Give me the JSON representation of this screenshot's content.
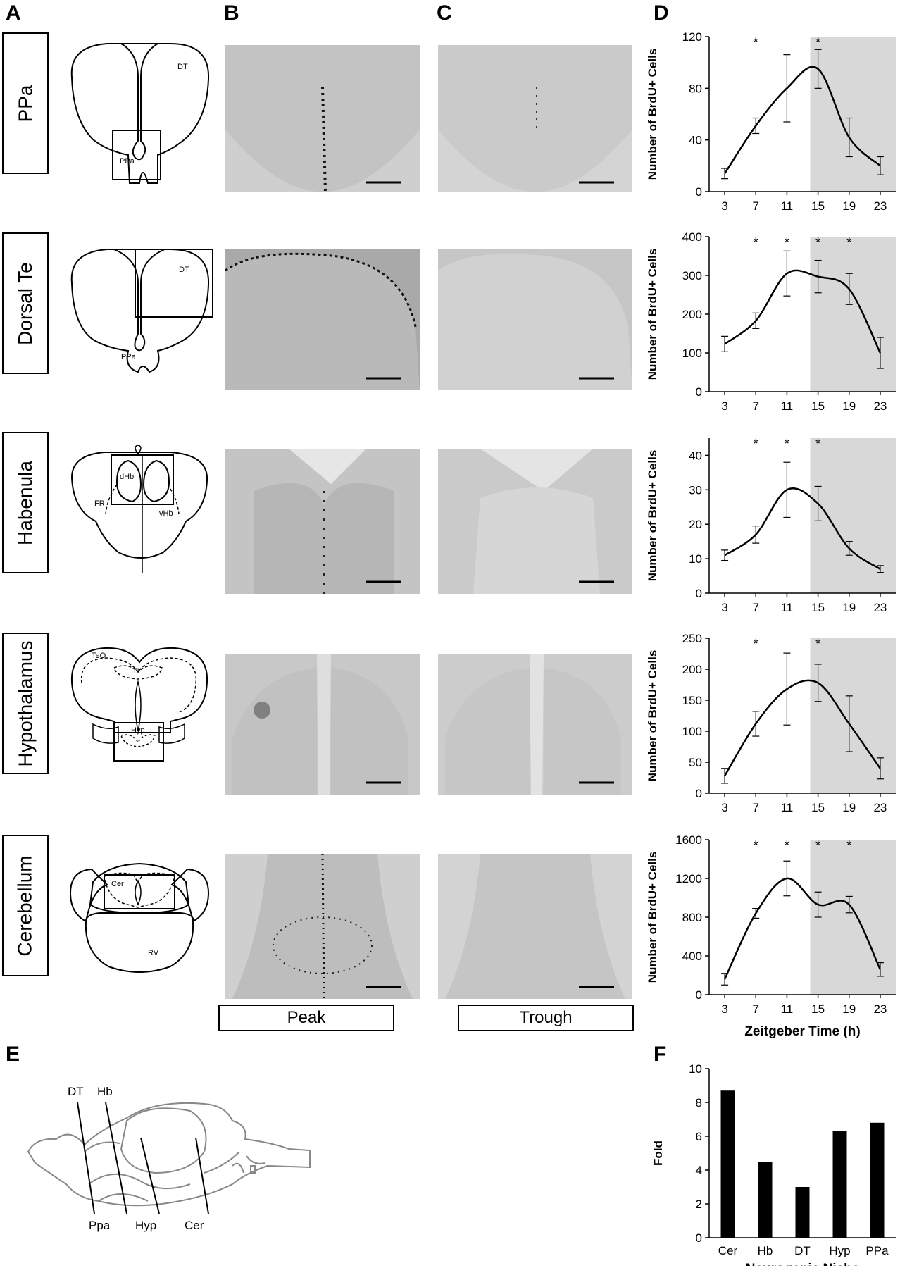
{
  "panel_letters": {
    "A": "A",
    "B": "B",
    "C": "C",
    "D": "D",
    "E": "E",
    "F": "F"
  },
  "regions": [
    "PPa",
    "Dorsal Te",
    "Habenula",
    "Hypothalamus",
    "Cerebellum"
  ],
  "schematic_labels": {
    "ppa": {
      "dt": "DT",
      "ppa": "PPa"
    },
    "dorsal_te": {
      "dt": "DT",
      "ppa": "PPa"
    },
    "habenula": {
      "dhb": "dHb",
      "fr": "FR",
      "vhb": "vHb"
    },
    "hypothalamus": {
      "teo": "TeO",
      "tl": "TL",
      "hyp": "Hyp"
    },
    "cerebellum": {
      "cer": "Cer",
      "rv": "RV"
    }
  },
  "column_labels": {
    "peak": "Peak",
    "trough": "Trough"
  },
  "sagittal_labels": {
    "dt": "DT",
    "hb": "Hb",
    "ppa": "Ppa",
    "hyp": "Hyp",
    "cer": "Cer"
  },
  "chart_data": [
    {
      "type": "line",
      "region": "PPa",
      "x": [
        3,
        7,
        11,
        15,
        19,
        23
      ],
      "y": [
        14,
        51,
        80,
        95,
        42,
        20
      ],
      "err": [
        4,
        6,
        26,
        15,
        15,
        7
      ],
      "sig": [
        false,
        true,
        false,
        true,
        false,
        false
      ],
      "ylim": [
        0,
        120
      ],
      "yticks": [
        0,
        40,
        80,
        120
      ],
      "ylabel": "Number of BrdU+ Cells",
      "xlabel": "",
      "dark_start": 14
    },
    {
      "type": "line",
      "region": "Dorsal Te",
      "x": [
        3,
        7,
        11,
        15,
        19,
        23
      ],
      "y": [
        123,
        183,
        305,
        297,
        265,
        100
      ],
      "err": [
        20,
        20,
        58,
        42,
        40,
        40
      ],
      "sig": [
        false,
        true,
        true,
        true,
        true,
        false
      ],
      "ylim": [
        0,
        400
      ],
      "yticks": [
        0,
        100,
        200,
        300,
        400
      ],
      "ylabel": "Number of BrdU+ Cells",
      "xlabel": "",
      "dark_start": 14
    },
    {
      "type": "line",
      "region": "Habenula",
      "x": [
        3,
        7,
        11,
        15,
        19,
        23
      ],
      "y": [
        11,
        17,
        30,
        26,
        13,
        7
      ],
      "err": [
        1.5,
        2.5,
        8,
        5,
        2,
        1
      ],
      "sig": [
        false,
        true,
        true,
        true,
        false,
        false
      ],
      "ylim": [
        0,
        45
      ],
      "yticks": [
        0,
        10,
        20,
        30,
        40
      ],
      "ylabel": "Number of BrdU+ Cells",
      "xlabel": "",
      "dark_start": 14
    },
    {
      "type": "line",
      "region": "Hypothalamus",
      "x": [
        3,
        7,
        11,
        15,
        19,
        23
      ],
      "y": [
        28,
        112,
        168,
        178,
        112,
        40
      ],
      "err": [
        12,
        20,
        58,
        30,
        45,
        17
      ],
      "sig": [
        false,
        true,
        false,
        true,
        false,
        false
      ],
      "ylim": [
        0,
        250
      ],
      "yticks": [
        0,
        50,
        100,
        150,
        200,
        250
      ],
      "ylabel": "Number of BrdU+ Cells",
      "xlabel": "",
      "dark_start": 14
    },
    {
      "type": "line",
      "region": "Cerebellum",
      "x": [
        3,
        7,
        11,
        15,
        19,
        23
      ],
      "y": [
        160,
        840,
        1200,
        930,
        930,
        260
      ],
      "err": [
        60,
        50,
        180,
        130,
        85,
        70
      ],
      "sig": [
        false,
        true,
        true,
        true,
        true,
        false
      ],
      "ylim": [
        0,
        1600
      ],
      "yticks": [
        0,
        400,
        800,
        1200,
        1600
      ],
      "ylabel": "Number of BrdU+ Cells",
      "xlabel": "Zeitgeber Time (h)",
      "dark_start": 14
    },
    {
      "type": "bar",
      "categories": [
        "Cer",
        "Hb",
        "DT",
        "Hyp",
        "PPa"
      ],
      "values": [
        8.7,
        4.5,
        3.0,
        6.3,
        6.8
      ],
      "ylim": [
        0,
        10
      ],
      "yticks": [
        0,
        2,
        4,
        6,
        8,
        10
      ],
      "ylabel": "Fold",
      "xlabel": "Neurogenic Niche"
    }
  ],
  "colors": {
    "dark_phase": "#d8d8d8",
    "line": "#000000",
    "bar": "#000000",
    "tissue": "#c9c9c9"
  }
}
